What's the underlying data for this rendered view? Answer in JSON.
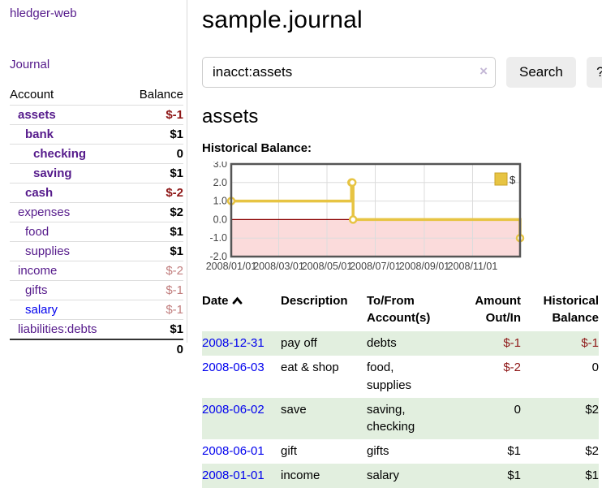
{
  "app": {
    "brand": "hledger-web",
    "nav_journal": "Journal",
    "title": "sample.journal"
  },
  "search": {
    "value": "inacct:assets",
    "clear_icon": "×",
    "button_label": "Search",
    "help_label": "?"
  },
  "sidebar": {
    "headers": {
      "account": "Account",
      "balance": "Balance"
    },
    "accounts": [
      {
        "name": "assets",
        "depth": 1,
        "bold": true,
        "balance": "$-1",
        "balance_style": "strong-negative"
      },
      {
        "name": "bank",
        "depth": 2,
        "bold": true,
        "balance": "$1",
        "balance_style": "normal"
      },
      {
        "name": "checking",
        "depth": 3,
        "bold": true,
        "balance": "0",
        "balance_style": "normal"
      },
      {
        "name": "saving",
        "depth": 3,
        "bold": true,
        "balance": "$1",
        "balance_style": "normal"
      },
      {
        "name": "cash",
        "depth": 2,
        "bold": true,
        "balance": "$-2",
        "balance_style": "strong-negative"
      },
      {
        "name": "expenses",
        "depth": 1,
        "bold": false,
        "balance": "$2",
        "balance_style": "normal"
      },
      {
        "name": "food",
        "depth": 2,
        "bold": false,
        "balance": "$1",
        "balance_style": "normal"
      },
      {
        "name": "supplies",
        "depth": 2,
        "bold": false,
        "balance": "$1",
        "balance_style": "normal"
      },
      {
        "name": "income",
        "depth": 1,
        "bold": false,
        "balance": "$-2",
        "balance_style": "faded-negative"
      },
      {
        "name": "gifts",
        "depth": 2,
        "bold": false,
        "balance": "$-1",
        "balance_style": "faded-negative"
      },
      {
        "name": "salary",
        "depth": 2,
        "bold": false,
        "balance": "$-1",
        "balance_style": "faded-negative",
        "link_state": "unvisited"
      },
      {
        "name": "liabilities:debts",
        "depth": 1,
        "bold": false,
        "balance": "$1",
        "balance_style": "normal"
      }
    ],
    "total": "0"
  },
  "main": {
    "account_heading": "assets",
    "chart_label": "Historical Balance:"
  },
  "chart_data": {
    "type": "line",
    "step": true,
    "title": "Historical Balance:",
    "series": [
      {
        "name": "$",
        "color": "#E7C443",
        "points": [
          {
            "date": "2008-01-01",
            "value": 1
          },
          {
            "date": "2008-06-01",
            "value": 2
          },
          {
            "date": "2008-06-02",
            "value": 2
          },
          {
            "date": "2008-06-03",
            "value": 0
          },
          {
            "date": "2008-12-31",
            "value": -1
          }
        ]
      }
    ],
    "x_range": [
      "2008-01-01",
      "2008-12-31"
    ],
    "ylim": [
      -2,
      3
    ],
    "yticks": [
      3.0,
      2.0,
      1.0,
      0.0,
      -1.0,
      -2.0
    ],
    "xticks": [
      {
        "label": "2008/01/01",
        "date": "2008-01-01"
      },
      {
        "label": "2008/03/01",
        "date": "2008-03-01"
      },
      {
        "label": "2008/05/01",
        "date": "2008-05-01"
      },
      {
        "label": "2008/07/01",
        "date": "2008-07-01"
      },
      {
        "label": "2008/09/01",
        "date": "2008-09-01"
      },
      {
        "label": "2008/11/01",
        "date": "2008-11-01"
      }
    ],
    "legend": {
      "label": "$",
      "position": "top-right"
    },
    "negative_region_fill": "#FBDBDB",
    "zero_line_color": "#8B0000",
    "grid": true
  },
  "register": {
    "headers": {
      "date": "Date",
      "description": "Description",
      "tofrom": "To/From Account(s)",
      "amount": "Amount Out/In",
      "balance": "Historical Balance"
    },
    "rows": [
      {
        "date": "2008-12-31",
        "description": "pay off",
        "tofrom": "debts",
        "amount": "$-1",
        "amount_neg": true,
        "balance": "$-1",
        "balance_neg": true,
        "shaded": true
      },
      {
        "date": "2008-06-03",
        "description": "eat & shop",
        "tofrom": "food, supplies",
        "amount": "$-2",
        "amount_neg": true,
        "balance": "0",
        "balance_neg": false,
        "shaded": false
      },
      {
        "date": "2008-06-02",
        "description": "save",
        "tofrom": "saving, checking",
        "amount": "0",
        "amount_neg": false,
        "balance": "$2",
        "balance_neg": false,
        "shaded": true
      },
      {
        "date": "2008-06-01",
        "description": "gift",
        "tofrom": "gifts",
        "amount": "$1",
        "amount_neg": false,
        "balance": "$2",
        "balance_neg": false,
        "shaded": false
      },
      {
        "date": "2008-01-01",
        "description": "income",
        "tofrom": "salary",
        "amount": "$1",
        "amount_neg": false,
        "balance": "$1",
        "balance_neg": false,
        "shaded": true
      }
    ]
  },
  "colors": {
    "link_visited": "#551A8B",
    "link_unvisited": "#0000EE",
    "negative_strong": "#8E1717",
    "negative_faded": "#C17D7D",
    "row_shade_green": "#E2EFDF",
    "chart_line_gold": "#E7C443",
    "chart_negative_fill": "#FBDBDB",
    "chart_zero_line": "#8B0000"
  }
}
